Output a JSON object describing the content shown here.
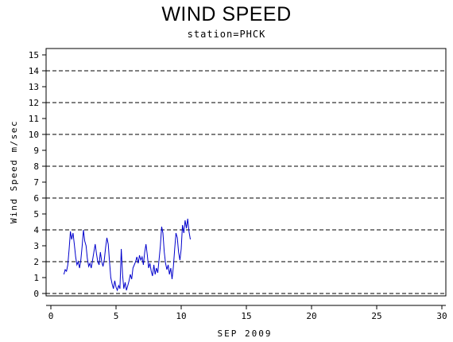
{
  "chart_data": {
    "type": "line",
    "title": "WIND SPEED",
    "subtitle": "station=PHCK",
    "xlabel": "SEP 2009",
    "ylabel": "Wind Speed m/sec",
    "xlim": [
      0,
      30
    ],
    "ylim": [
      0,
      15
    ],
    "xticks": [
      0,
      5,
      10,
      15,
      20,
      25,
      30
    ],
    "yticks": [
      0,
      1,
      2,
      3,
      4,
      5,
      6,
      7,
      8,
      9,
      10,
      11,
      12,
      13,
      14,
      15
    ],
    "grid_lines_y": [
      0,
      2,
      4,
      6,
      8,
      10,
      12,
      14
    ],
    "grid": "dashed horizontal",
    "legend": "none",
    "series_color": "#0000cc",
    "series": [
      {
        "points": [
          [
            1.0,
            1.2
          ],
          [
            1.1,
            1.5
          ],
          [
            1.2,
            1.4
          ],
          [
            1.3,
            1.8
          ],
          [
            1.4,
            2.8
          ],
          [
            1.5,
            3.9
          ],
          [
            1.6,
            3.4
          ],
          [
            1.7,
            3.8
          ],
          [
            1.8,
            3.1
          ],
          [
            1.9,
            2.3
          ],
          [
            2.0,
            1.8
          ],
          [
            2.1,
            2.0
          ],
          [
            2.2,
            1.6
          ],
          [
            2.3,
            2.1
          ],
          [
            2.4,
            3.0
          ],
          [
            2.5,
            4.0
          ],
          [
            2.6,
            3.3
          ],
          [
            2.7,
            3.0
          ],
          [
            2.8,
            2.2
          ],
          [
            2.9,
            1.7
          ],
          [
            3.0,
            1.9
          ],
          [
            3.1,
            1.6
          ],
          [
            3.2,
            2.1
          ],
          [
            3.3,
            2.6
          ],
          [
            3.4,
            3.1
          ],
          [
            3.5,
            2.5
          ],
          [
            3.6,
            2.0
          ],
          [
            3.7,
            1.8
          ],
          [
            3.8,
            2.6
          ],
          [
            3.9,
            2.0
          ],
          [
            4.0,
            1.7
          ],
          [
            4.1,
            2.1
          ],
          [
            4.2,
            2.9
          ],
          [
            4.3,
            3.5
          ],
          [
            4.4,
            3.1
          ],
          [
            4.5,
            2.0
          ],
          [
            4.6,
            1.0
          ],
          [
            4.7,
            0.6
          ],
          [
            4.8,
            0.3
          ],
          [
            4.9,
            0.8
          ],
          [
            5.0,
            0.4
          ],
          [
            5.1,
            0.2
          ],
          [
            5.2,
            0.5
          ],
          [
            5.3,
            0.3
          ],
          [
            5.4,
            2.8
          ],
          [
            5.5,
            1.2
          ],
          [
            5.6,
            0.3
          ],
          [
            5.7,
            0.7
          ],
          [
            5.8,
            0.2
          ],
          [
            5.9,
            0.5
          ],
          [
            6.0,
            0.8
          ],
          [
            6.1,
            1.2
          ],
          [
            6.2,
            0.9
          ],
          [
            6.3,
            1.6
          ],
          [
            6.4,
            1.8
          ],
          [
            6.5,
            2.0
          ],
          [
            6.6,
            2.3
          ],
          [
            6.7,
            1.9
          ],
          [
            6.8,
            2.4
          ],
          [
            6.9,
            2.1
          ],
          [
            7.0,
            2.3
          ],
          [
            7.1,
            1.8
          ],
          [
            7.2,
            2.6
          ],
          [
            7.3,
            3.1
          ],
          [
            7.4,
            2.4
          ],
          [
            7.5,
            1.6
          ],
          [
            7.6,
            1.9
          ],
          [
            7.7,
            1.4
          ],
          [
            7.8,
            1.1
          ],
          [
            7.9,
            1.8
          ],
          [
            8.0,
            1.2
          ],
          [
            8.1,
            1.6
          ],
          [
            8.2,
            1.3
          ],
          [
            8.3,
            2.1
          ],
          [
            8.4,
            3.0
          ],
          [
            8.5,
            4.2
          ],
          [
            8.6,
            3.8
          ],
          [
            8.7,
            2.6
          ],
          [
            8.8,
            1.9
          ],
          [
            8.9,
            1.5
          ],
          [
            9.0,
            1.8
          ],
          [
            9.1,
            1.2
          ],
          [
            9.2,
            1.6
          ],
          [
            9.3,
            0.9
          ],
          [
            9.4,
            1.7
          ],
          [
            9.5,
            2.8
          ],
          [
            9.6,
            3.8
          ],
          [
            9.7,
            3.5
          ],
          [
            9.8,
            2.6
          ],
          [
            9.9,
            2.1
          ],
          [
            10.0,
            2.8
          ],
          [
            10.1,
            4.3
          ],
          [
            10.2,
            3.8
          ],
          [
            10.3,
            4.6
          ],
          [
            10.4,
            4.1
          ],
          [
            10.5,
            4.7
          ],
          [
            10.6,
            3.9
          ],
          [
            10.7,
            3.4
          ]
        ]
      }
    ]
  }
}
